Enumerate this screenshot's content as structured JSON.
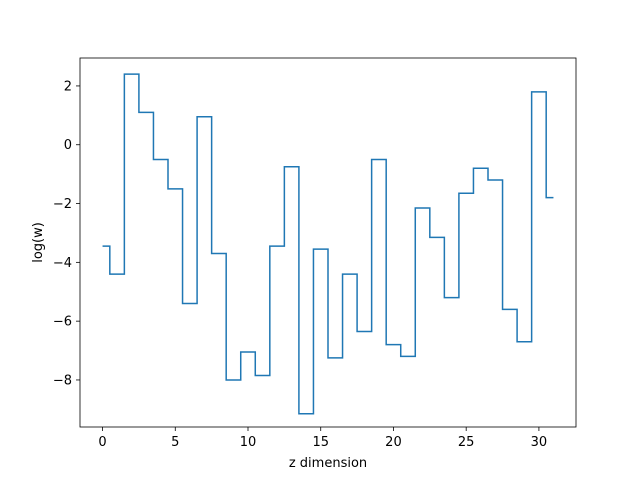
{
  "chart_data": {
    "type": "line",
    "drawstyle": "steps-mid",
    "title": "",
    "xlabel": "z dimension",
    "ylabel": "log(w)",
    "xlim": [
      -1.55,
      32.55
    ],
    "ylim": [
      -9.6,
      2.95
    ],
    "xticks": [
      0,
      5,
      10,
      15,
      20,
      25,
      30
    ],
    "yticks": [
      -8,
      -6,
      -4,
      -2,
      0,
      2
    ],
    "grid": false,
    "line_color": "#1f77b4",
    "series": [
      {
        "x": [
          0,
          1,
          2,
          3,
          4,
          5,
          6,
          7,
          8,
          9,
          10,
          11,
          12,
          13,
          14,
          15,
          16,
          17,
          18,
          19,
          20,
          21,
          22,
          23,
          24,
          25,
          26,
          27,
          28,
          29,
          30,
          31
        ],
        "values": [
          -3.45,
          -4.4,
          2.4,
          1.1,
          -0.5,
          -1.5,
          -5.4,
          0.95,
          -3.7,
          -8.0,
          -7.05,
          -7.85,
          -3.45,
          -0.75,
          -9.15,
          -3.55,
          -7.25,
          -4.4,
          -6.35,
          -0.5,
          -6.8,
          -7.2,
          -2.15,
          -3.15,
          -5.2,
          -1.65,
          -0.8,
          -1.2,
          -5.6,
          -6.7,
          1.8,
          -1.8
        ]
      }
    ]
  }
}
